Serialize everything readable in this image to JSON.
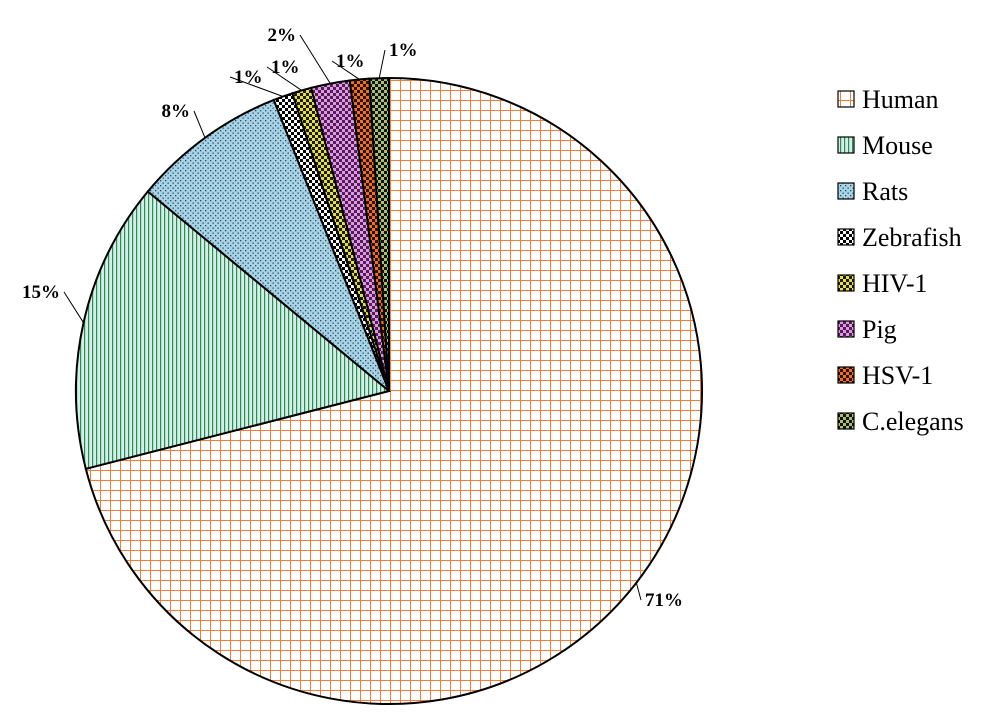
{
  "chart_data": {
    "type": "pie",
    "title": "",
    "legend_position": "right",
    "slices": [
      {
        "label": "Human",
        "value": 71,
        "value_label": "71%",
        "color": "#f07e3a",
        "bg": "#ffffff",
        "pattern": "grid"
      },
      {
        "label": "Mouse",
        "value": 15,
        "value_label": "15%",
        "color": "#2e8b57",
        "bg": "#d4eee8",
        "pattern": "vlines"
      },
      {
        "label": "Rats",
        "value": 8,
        "value_label": "8%",
        "color": "#2a4a6a",
        "bg": "#a7d3e4",
        "pattern": "dots"
      },
      {
        "label": "Zebrafish",
        "value": 1,
        "value_label": "1%",
        "color": "#ffffff",
        "bg": "#000000",
        "pattern": "checker"
      },
      {
        "label": "HIV-1",
        "value": 1,
        "value_label": "1%",
        "color": "#e8e03a",
        "bg": "#1a1a1a",
        "pattern": "checker"
      },
      {
        "label": "Pig",
        "value": 2,
        "value_label": "2%",
        "color": "#5a1a5a",
        "bg": "#d69ee0",
        "pattern": "checker"
      },
      {
        "label": "HSV-1",
        "value": 1,
        "value_label": "1%",
        "color": "#ff6a1a",
        "bg": "#1a1a1a",
        "pattern": "checker"
      },
      {
        "label": "C.elegans",
        "value": 1,
        "value_label": "1%",
        "color": "#a8c070",
        "bg": "#111111",
        "pattern": "checker"
      }
    ]
  }
}
